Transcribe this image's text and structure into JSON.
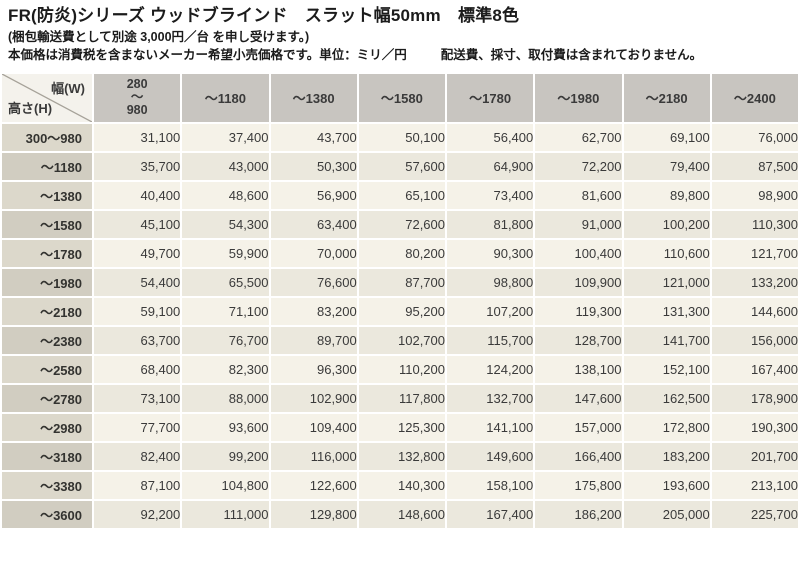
{
  "header": {
    "title": "FR(防炎)シリーズ ウッドブラインド　スラット幅50mm　標準8色",
    "shipping_note": "(梱包輸送費として別途 3,000円／台 を申し受けます。)",
    "price_note": "本価格は消費税を含まないメーカー希望小売価格です。単位：ミリ／円",
    "fees_note": "配送費、採寸、取付費は含まれておりません。"
  },
  "colors": {
    "column_header_bg": "#c8c5c0",
    "row_header_bg": "#dcd8cb",
    "row_header_bg_alt": "#d1cdc1",
    "cell_bg": "#f5f2e8",
    "cell_bg_alt": "#ebe8dd",
    "corner_bg": "#f4f2ec",
    "text": "#3a3a3a"
  },
  "table": {
    "corner": {
      "width_label": "幅(W)",
      "height_label": "高さ(H)"
    },
    "columns": [
      "280\n～\n980",
      "～1180",
      "～1380",
      "～1580",
      "～1780",
      "～1980",
      "～2180",
      "～2400"
    ],
    "rows": [
      {
        "height": "300～980",
        "prices": [
          "31,100",
          "37,400",
          "43,700",
          "50,100",
          "56,400",
          "62,700",
          "69,100",
          "76,000"
        ]
      },
      {
        "height": "～1180",
        "prices": [
          "35,700",
          "43,000",
          "50,300",
          "57,600",
          "64,900",
          "72,200",
          "79,400",
          "87,500"
        ]
      },
      {
        "height": "～1380",
        "prices": [
          "40,400",
          "48,600",
          "56,900",
          "65,100",
          "73,400",
          "81,600",
          "89,800",
          "98,900"
        ]
      },
      {
        "height": "～1580",
        "prices": [
          "45,100",
          "54,300",
          "63,400",
          "72,600",
          "81,800",
          "91,000",
          "100,200",
          "110,300"
        ]
      },
      {
        "height": "～1780",
        "prices": [
          "49,700",
          "59,900",
          "70,000",
          "80,200",
          "90,300",
          "100,400",
          "110,600",
          "121,700"
        ]
      },
      {
        "height": "～1980",
        "prices": [
          "54,400",
          "65,500",
          "76,600",
          "87,700",
          "98,800",
          "109,900",
          "121,000",
          "133,200"
        ]
      },
      {
        "height": "～2180",
        "prices": [
          "59,100",
          "71,100",
          "83,200",
          "95,200",
          "107,200",
          "119,300",
          "131,300",
          "144,600"
        ]
      },
      {
        "height": "～2380",
        "prices": [
          "63,700",
          "76,700",
          "89,700",
          "102,700",
          "115,700",
          "128,700",
          "141,700",
          "156,000"
        ]
      },
      {
        "height": "～2580",
        "prices": [
          "68,400",
          "82,300",
          "96,300",
          "110,200",
          "124,200",
          "138,100",
          "152,100",
          "167,400"
        ]
      },
      {
        "height": "～2780",
        "prices": [
          "73,100",
          "88,000",
          "102,900",
          "117,800",
          "132,700",
          "147,600",
          "162,500",
          "178,900"
        ]
      },
      {
        "height": "～2980",
        "prices": [
          "77,700",
          "93,600",
          "109,400",
          "125,300",
          "141,100",
          "157,000",
          "172,800",
          "190,300"
        ]
      },
      {
        "height": "～3180",
        "prices": [
          "82,400",
          "99,200",
          "116,000",
          "132,800",
          "149,600",
          "166,400",
          "183,200",
          "201,700"
        ]
      },
      {
        "height": "～3380",
        "prices": [
          "87,100",
          "104,800",
          "122,600",
          "140,300",
          "158,100",
          "175,800",
          "193,600",
          "213,100"
        ]
      },
      {
        "height": "～3600",
        "prices": [
          "92,200",
          "111,000",
          "129,800",
          "148,600",
          "167,400",
          "186,200",
          "205,000",
          "225,700"
        ]
      }
    ]
  }
}
